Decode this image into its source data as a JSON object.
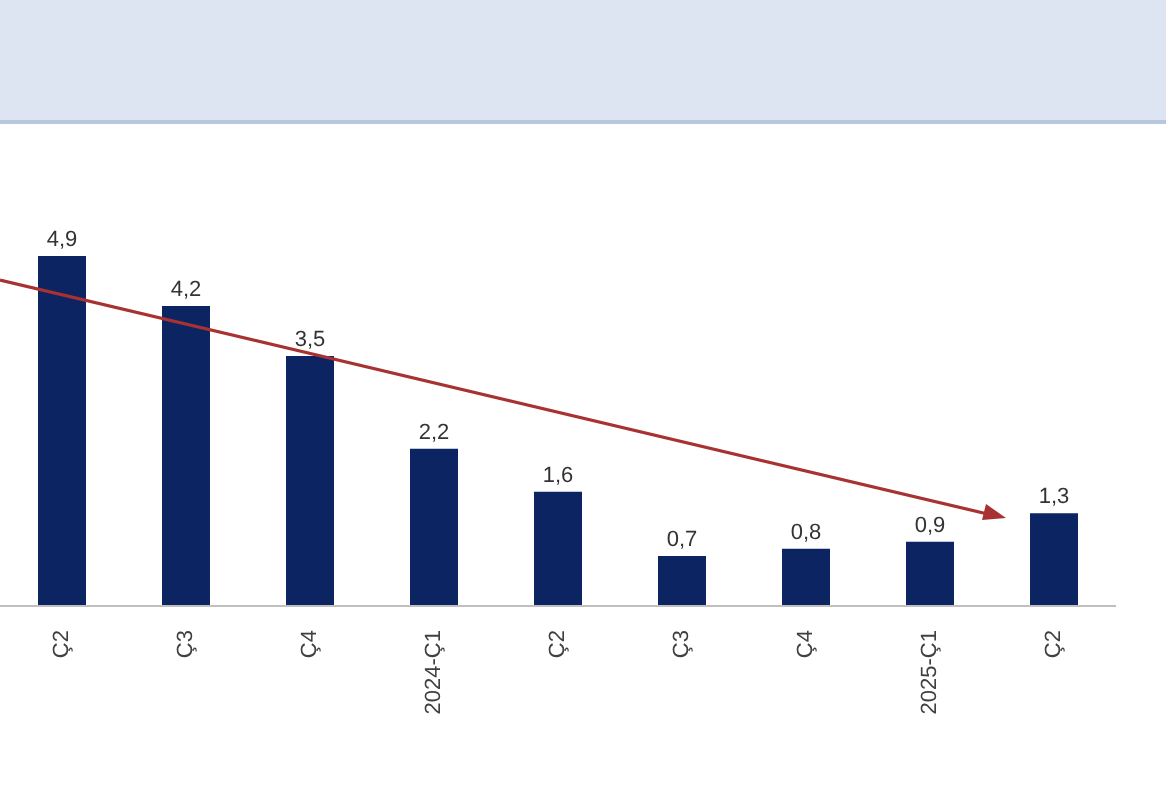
{
  "chart_data": {
    "type": "bar",
    "categories": [
      "Ç2",
      "Ç3",
      "Ç4",
      "2024-Ç1",
      "Ç2",
      "Ç3",
      "Ç4",
      "2025-Ç1",
      "Ç2"
    ],
    "values": [
      4.9,
      4.2,
      3.5,
      2.2,
      1.6,
      0.7,
      0.8,
      0.9,
      1.3
    ],
    "value_labels": [
      "4,9",
      "4,2",
      "3,5",
      "2,2",
      "1,6",
      "0,7",
      "0,8",
      "0,9",
      "1,3"
    ],
    "color": "#0c2461",
    "grid": false,
    "tick_labels": "x"
  }
}
